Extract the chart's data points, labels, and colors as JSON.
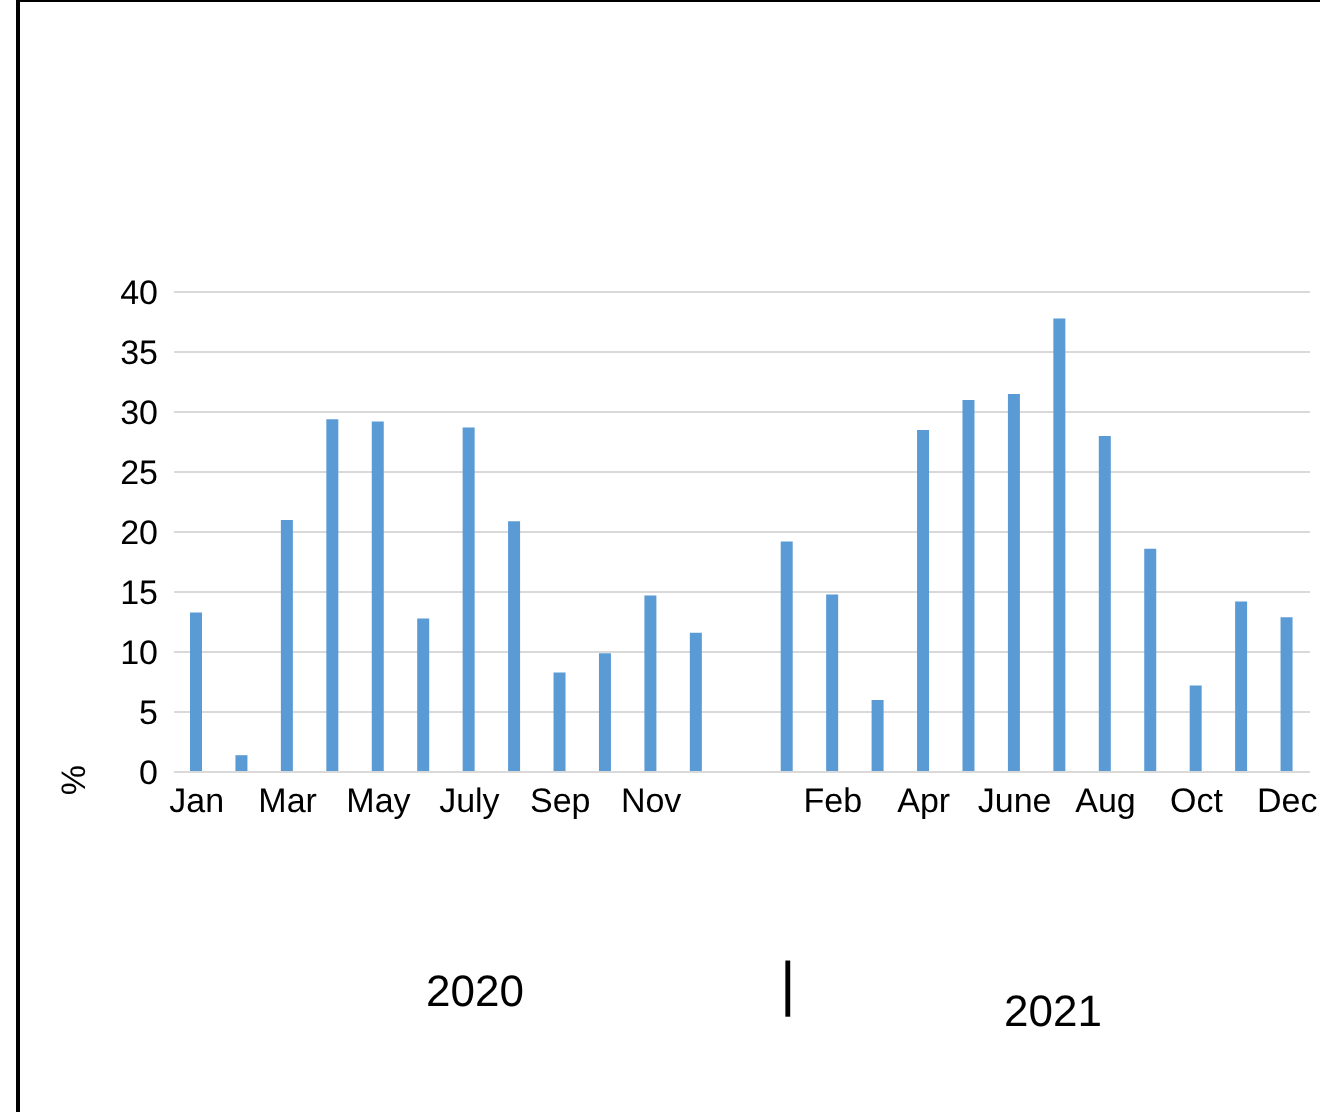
{
  "chart_data": {
    "type": "bar",
    "ylabel": "%",
    "categories": [
      "Jan",
      null,
      "Mar",
      null,
      "May",
      null,
      "July",
      null,
      "Sep",
      null,
      "Nov",
      null,
      null,
      null,
      "Feb",
      null,
      "Apr",
      null,
      "June",
      null,
      "Aug",
      null,
      "Oct",
      null,
      "Dec"
    ],
    "values": [
      13.3,
      1.4,
      21,
      29.4,
      29.2,
      12.8,
      28.7,
      20.9,
      8.3,
      9.9,
      14.7,
      11.6,
      null,
      19.2,
      14.8,
      6,
      28.5,
      31,
      31.5,
      37.8,
      28,
      18.6,
      7.2,
      14.2,
      12.9
    ],
    "color": "#5b9bd5",
    "ylim": [
      0,
      40
    ],
    "yticks": [
      0,
      5,
      10,
      15,
      20,
      25,
      30,
      35,
      40
    ],
    "grid": "y",
    "annotations": [
      "2020",
      "|",
      "2021"
    ]
  }
}
